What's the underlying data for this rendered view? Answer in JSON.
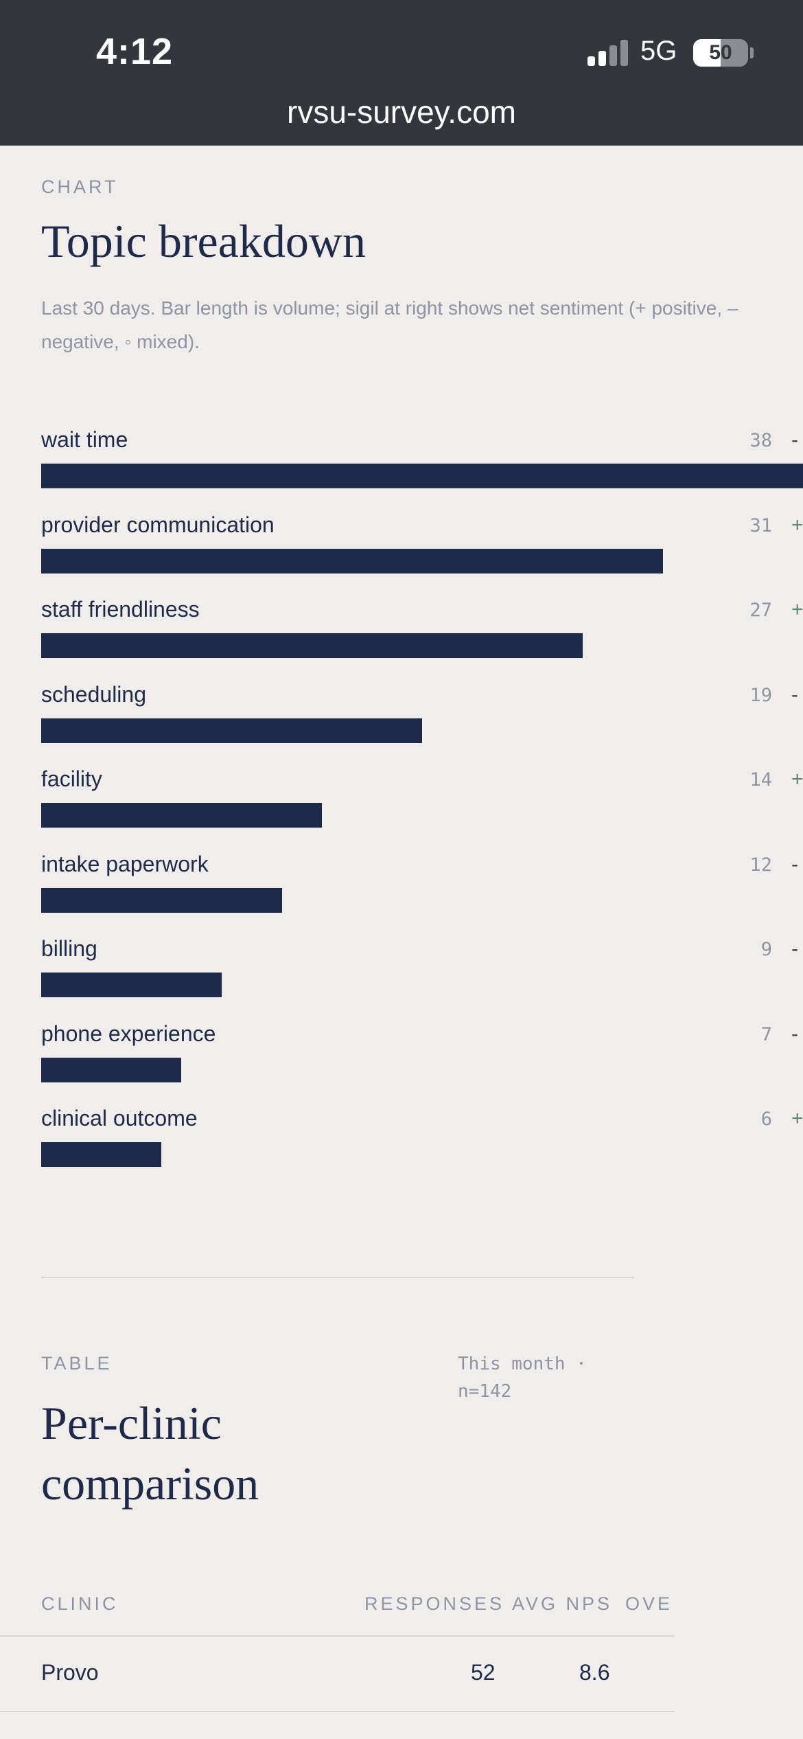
{
  "status_bar": {
    "time": "4:12",
    "network": "5G",
    "battery": "50",
    "battery_level": 0.5
  },
  "browser": {
    "url": "rvsu-survey.com"
  },
  "chart_section": {
    "eyebrow": "CHART",
    "title": "Topic breakdown",
    "subtitle": "Last 30 days. Bar length is volume; sigil at right shows net sentiment (+ positive, – negative, ◦ mixed)."
  },
  "chart_data": {
    "type": "bar",
    "orientation": "horizontal",
    "categories": [
      "wait time",
      "provider communication",
      "staff friendliness",
      "scheduling",
      "facility",
      "intake paperwork",
      "billing",
      "phone experience",
      "clinical outcome"
    ],
    "values": [
      38,
      31,
      27,
      19,
      14,
      12,
      9,
      7,
      6
    ],
    "sentiment": [
      "-",
      "+",
      "+",
      "-",
      "+",
      "-",
      "-",
      "-",
      "+"
    ],
    "colors": {
      "bar": "#1e2a47",
      "positive": "#5b8a6a",
      "negative": "#3a3f4c"
    }
  },
  "table_section": {
    "eyebrow": "TABLE",
    "title_line1": "Per-clinic",
    "title_line2": "comparison",
    "meta": "This month · n=142",
    "columns": [
      "CLINIC",
      "RESPONSES",
      "AVG NPS",
      "OVE"
    ],
    "rows": [
      {
        "clinic": "Provo",
        "responses": "52",
        "avg_nps": "8.6"
      }
    ]
  }
}
